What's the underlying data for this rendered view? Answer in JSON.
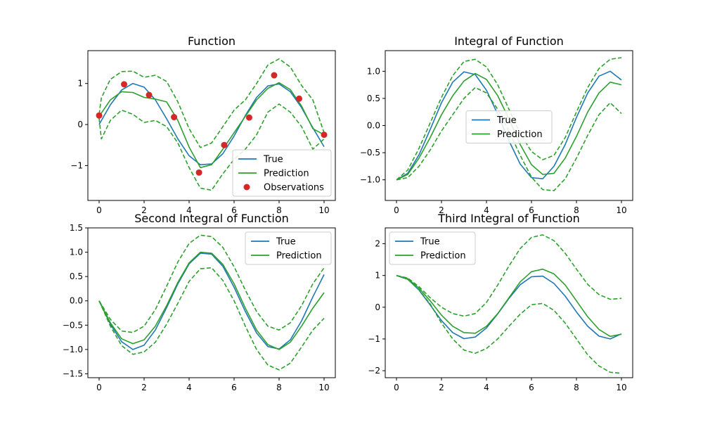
{
  "colors": {
    "true": "#1f77b4",
    "prediction": "#2ca02c",
    "band": "#2ca02c",
    "observations": "#d62728",
    "axes": "#000000",
    "legend_border": "#cccccc"
  },
  "chart_data": [
    {
      "type": "line",
      "title": "Function",
      "xlim": [
        -0.5,
        10.5
      ],
      "ylim": [
        -1.85,
        1.8
      ],
      "xticks": [
        0,
        2,
        4,
        6,
        8,
        10
      ],
      "yticks": [
        -1,
        0,
        1
      ],
      "legend_position": "bottom-right",
      "legend": [
        "True",
        "Prediction",
        "Observations"
      ],
      "series": [
        {
          "name": "True",
          "style": "solid",
          "color": "#1f77b4",
          "x": [
            0,
            0.5,
            1,
            1.5,
            2,
            2.5,
            3,
            3.5,
            4,
            4.5,
            5,
            5.5,
            6,
            6.5,
            7,
            7.5,
            8,
            8.5,
            9,
            9.5,
            10
          ],
          "y": [
            0,
            0.48,
            0.84,
            1.0,
            0.91,
            0.6,
            0.14,
            -0.35,
            -0.76,
            -0.98,
            -0.96,
            -0.71,
            -0.28,
            0.22,
            0.66,
            0.94,
            0.99,
            0.8,
            0.41,
            -0.08,
            -0.54
          ]
        },
        {
          "name": "Prediction",
          "style": "solid",
          "color": "#2ca02c",
          "x": [
            0,
            0.5,
            1,
            1.5,
            2,
            2.5,
            3,
            3.5,
            4,
            4.5,
            5,
            5.5,
            6,
            6.5,
            7,
            7.5,
            8,
            8.5,
            9,
            9.5,
            10
          ],
          "y": [
            0.2,
            0.6,
            0.8,
            0.78,
            0.66,
            0.62,
            0.55,
            0.1,
            -0.55,
            -1.05,
            -0.98,
            -0.6,
            -0.2,
            0.2,
            0.6,
            0.88,
            1.02,
            0.85,
            0.45,
            -0.1,
            -0.25
          ]
        },
        {
          "name": "",
          "style": "dashed",
          "color": "#2ca02c",
          "x": [
            0,
            0.1,
            0.5,
            1,
            1.5,
            2,
            2.5,
            3,
            3.5,
            4,
            4.5,
            5,
            5.5,
            6,
            6.5,
            7,
            7.5,
            8,
            8.5,
            9,
            9.5,
            10
          ],
          "y": [
            0.25,
            0.65,
            1.1,
            1.29,
            1.3,
            1.15,
            1.2,
            1.05,
            0.55,
            -0.1,
            -0.56,
            -0.45,
            -0.05,
            0.35,
            0.6,
            1.0,
            1.45,
            1.6,
            1.4,
            0.95,
            0.6,
            -0.2
          ]
        },
        {
          "name": "",
          "style": "dashed",
          "color": "#2ca02c",
          "x": [
            0,
            0.1,
            0.5,
            1,
            1.5,
            2,
            2.5,
            3,
            3.5,
            4,
            4.5,
            5,
            5.5,
            6,
            6.5,
            7,
            7.5,
            8,
            8.5,
            9,
            9.5,
            10
          ],
          "y": [
            0.15,
            -0.35,
            0.1,
            0.35,
            0.25,
            0.05,
            0.1,
            -0.05,
            -0.45,
            -1.05,
            -1.55,
            -1.6,
            -1.2,
            -0.85,
            -0.6,
            -0.25,
            0.3,
            0.5,
            0.3,
            -0.05,
            -0.6,
            -0.35
          ]
        }
      ],
      "scatter": {
        "name": "Observations",
        "color": "#d62728",
        "x": [
          0,
          1.11,
          2.22,
          3.33,
          4.44,
          5.56,
          6.67,
          7.78,
          8.89,
          10
        ],
        "y": [
          0.22,
          0.98,
          0.72,
          0.18,
          -1.17,
          -0.5,
          0.17,
          1.2,
          0.63,
          -0.25
        ]
      }
    },
    {
      "type": "line",
      "title": "Integral of Function",
      "xlim": [
        -0.5,
        10.5
      ],
      "ylim": [
        -1.38,
        1.38
      ],
      "xticks": [
        0,
        2,
        4,
        6,
        8,
        10
      ],
      "yticks": [
        -1.0,
        -0.5,
        0.0,
        0.5,
        1.0
      ],
      "legend_position": "center",
      "legend": [
        "True",
        "Prediction"
      ],
      "series": [
        {
          "name": "True",
          "style": "solid",
          "color": "#1f77b4",
          "x": [
            0,
            0.5,
            1,
            1.5,
            2,
            2.5,
            3,
            3.5,
            4,
            4.5,
            5,
            5.5,
            6,
            6.5,
            7,
            7.5,
            8,
            8.5,
            9,
            9.5,
            10
          ],
          "y": [
            -1,
            -0.88,
            -0.54,
            -0.07,
            0.42,
            0.8,
            0.99,
            0.94,
            0.65,
            0.21,
            -0.28,
            -0.71,
            -0.96,
            -0.98,
            -0.75,
            -0.35,
            0.15,
            0.6,
            0.91,
            1.0,
            0.84
          ]
        },
        {
          "name": "Prediction",
          "style": "solid",
          "color": "#2ca02c",
          "x": [
            0,
            0.5,
            1,
            1.5,
            2,
            2.5,
            3,
            3.5,
            4,
            4.5,
            5,
            5.5,
            6,
            6.5,
            7,
            7.5,
            8,
            8.5,
            9,
            9.5,
            10
          ],
          "y": [
            -1,
            -0.9,
            -0.6,
            -0.22,
            0.2,
            0.55,
            0.82,
            0.96,
            0.85,
            0.55,
            0.12,
            -0.35,
            -0.72,
            -0.9,
            -0.88,
            -0.6,
            -0.2,
            0.25,
            0.6,
            0.8,
            0.75
          ]
        },
        {
          "name": "",
          "style": "dashed",
          "color": "#2ca02c",
          "x": [
            0,
            0.5,
            1,
            1.5,
            2,
            2.5,
            3,
            3.5,
            4,
            4.5,
            5,
            5.5,
            6,
            6.5,
            7,
            7.5,
            8,
            8.5,
            9,
            9.5,
            10
          ],
          "y": [
            -1,
            -0.82,
            -0.42,
            0.05,
            0.52,
            0.92,
            1.18,
            1.22,
            1.08,
            0.75,
            0.3,
            -0.15,
            -0.48,
            -0.63,
            -0.55,
            -0.22,
            0.25,
            0.7,
            1.05,
            1.22,
            1.25
          ]
        },
        {
          "name": "",
          "style": "dashed",
          "color": "#2ca02c",
          "x": [
            0,
            0.5,
            1,
            1.5,
            2,
            2.5,
            3,
            3.5,
            4,
            4.5,
            5,
            5.5,
            6,
            6.5,
            7,
            7.5,
            8,
            8.5,
            9,
            9.5,
            10
          ],
          "y": [
            -1,
            -0.96,
            -0.75,
            -0.45,
            -0.1,
            0.2,
            0.5,
            0.7,
            0.6,
            0.3,
            -0.1,
            -0.55,
            -0.95,
            -1.18,
            -1.2,
            -0.98,
            -0.6,
            -0.18,
            0.2,
            0.42,
            0.22
          ]
        }
      ]
    },
    {
      "type": "line",
      "title": "Second Integral of Function",
      "xlim": [
        -0.5,
        10.5
      ],
      "ylim": [
        -1.58,
        1.5
      ],
      "xticks": [
        0,
        2,
        4,
        6,
        8,
        10
      ],
      "yticks": [
        -1.5,
        -1.0,
        -0.5,
        0.0,
        0.5,
        1.0,
        1.5
      ],
      "legend_position": "top-right",
      "legend": [
        "True",
        "Prediction"
      ],
      "series": [
        {
          "name": "True",
          "style": "solid",
          "color": "#1f77b4",
          "x": [
            0,
            0.5,
            1,
            1.5,
            2,
            2.5,
            3,
            3.5,
            4,
            4.5,
            5,
            5.5,
            6,
            6.5,
            7,
            7.5,
            8,
            8.5,
            9,
            9.5,
            10
          ],
          "y": [
            0,
            -0.48,
            -0.84,
            -1.0,
            -0.91,
            -0.6,
            -0.14,
            0.35,
            0.76,
            0.98,
            0.96,
            0.71,
            0.28,
            -0.22,
            -0.66,
            -0.94,
            -0.99,
            -0.8,
            -0.41,
            0.08,
            0.54
          ]
        },
        {
          "name": "Prediction",
          "style": "solid",
          "color": "#2ca02c",
          "x": [
            0,
            0.5,
            1,
            1.5,
            2,
            2.5,
            3,
            3.5,
            4,
            4.5,
            5,
            5.5,
            6,
            6.5,
            7,
            7.5,
            8,
            8.5,
            9,
            9.5,
            10
          ],
          "y": [
            0,
            -0.45,
            -0.78,
            -0.88,
            -0.8,
            -0.52,
            -0.1,
            0.38,
            0.78,
            1.0,
            0.98,
            0.75,
            0.35,
            -0.15,
            -0.6,
            -0.9,
            -1.0,
            -0.85,
            -0.52,
            -0.15,
            0.17
          ]
        },
        {
          "name": "",
          "style": "dashed",
          "color": "#2ca02c",
          "x": [
            0,
            0.5,
            1,
            1.5,
            2,
            2.5,
            3,
            3.5,
            4,
            4.5,
            5,
            5.5,
            6,
            6.5,
            7,
            7.5,
            8,
            8.5,
            9,
            9.5,
            10
          ],
          "y": [
            0,
            -0.38,
            -0.62,
            -0.65,
            -0.52,
            -0.18,
            0.3,
            0.8,
            1.18,
            1.35,
            1.32,
            1.1,
            0.7,
            0.22,
            -0.22,
            -0.52,
            -0.6,
            -0.45,
            -0.1,
            0.35,
            0.68
          ]
        },
        {
          "name": "",
          "style": "dashed",
          "color": "#2ca02c",
          "x": [
            0,
            0.5,
            1,
            1.5,
            2,
            2.5,
            3,
            3.5,
            4,
            4.5,
            5,
            5.5,
            6,
            6.5,
            7,
            7.5,
            8,
            8.5,
            9,
            9.5,
            10
          ],
          "y": [
            0,
            -0.52,
            -0.92,
            -1.1,
            -1.05,
            -0.85,
            -0.48,
            -0.05,
            0.4,
            0.66,
            0.68,
            0.42,
            0.0,
            -0.52,
            -1.0,
            -1.32,
            -1.42,
            -1.28,
            -0.95,
            -0.6,
            -0.36
          ]
        }
      ]
    },
    {
      "type": "line",
      "title": "Third Integral of Function",
      "xlim": [
        -0.5,
        10.5
      ],
      "ylim": [
        -2.22,
        2.5
      ],
      "xticks": [
        0,
        2,
        4,
        6,
        8,
        10
      ],
      "yticks": [
        -2,
        -1,
        0,
        1,
        2
      ],
      "legend_position": "top-left",
      "legend": [
        "True",
        "Prediction"
      ],
      "series": [
        {
          "name": "True",
          "style": "solid",
          "color": "#1f77b4",
          "x": [
            0,
            0.5,
            1,
            1.5,
            2,
            2.5,
            3,
            3.5,
            4,
            4.5,
            5,
            5.5,
            6,
            6.5,
            7,
            7.5,
            8,
            8.5,
            9,
            9.5,
            10
          ],
          "y": [
            1,
            0.88,
            0.54,
            0.07,
            -0.42,
            -0.8,
            -0.99,
            -0.94,
            -0.65,
            -0.21,
            0.28,
            0.71,
            0.96,
            0.98,
            0.75,
            0.35,
            -0.15,
            -0.6,
            -0.91,
            -1.0,
            -0.84
          ]
        },
        {
          "name": "Prediction",
          "style": "solid",
          "color": "#2ca02c",
          "x": [
            0,
            0.5,
            1,
            1.5,
            2,
            2.5,
            3,
            3.5,
            4,
            4.5,
            5,
            5.5,
            6,
            6.5,
            7,
            7.5,
            8,
            8.5,
            9,
            9.5,
            10
          ],
          "y": [
            1,
            0.9,
            0.6,
            0.2,
            -0.25,
            -0.6,
            -0.8,
            -0.82,
            -0.6,
            -0.2,
            0.3,
            0.8,
            1.12,
            1.2,
            1.05,
            0.7,
            0.2,
            -0.3,
            -0.7,
            -0.92,
            -0.85
          ]
        },
        {
          "name": "",
          "style": "dashed",
          "color": "#2ca02c",
          "x": [
            0,
            0.5,
            1,
            1.5,
            2,
            2.5,
            3,
            3.5,
            4,
            4.5,
            5,
            5.5,
            6,
            6.5,
            7,
            7.5,
            8,
            8.5,
            9,
            9.5,
            10
          ],
          "y": [
            1,
            0.92,
            0.65,
            0.3,
            0.0,
            -0.2,
            -0.28,
            -0.2,
            0.15,
            0.7,
            1.3,
            1.85,
            2.2,
            2.28,
            2.1,
            1.7,
            1.2,
            0.72,
            0.4,
            0.25,
            0.28
          ]
        },
        {
          "name": "",
          "style": "dashed",
          "color": "#2ca02c",
          "x": [
            0,
            0.5,
            1,
            1.5,
            2,
            2.5,
            3,
            3.5,
            4,
            4.5,
            5,
            5.5,
            6,
            6.5,
            7,
            7.5,
            8,
            8.5,
            9,
            9.5,
            10
          ],
          "y": [
            1,
            0.88,
            0.55,
            0.1,
            -0.5,
            -1.0,
            -1.35,
            -1.45,
            -1.3,
            -1.0,
            -0.6,
            -0.22,
            0.08,
            0.12,
            -0.1,
            -0.5,
            -1.0,
            -1.5,
            -1.85,
            -2.05,
            -2.08
          ]
        }
      ]
    }
  ]
}
